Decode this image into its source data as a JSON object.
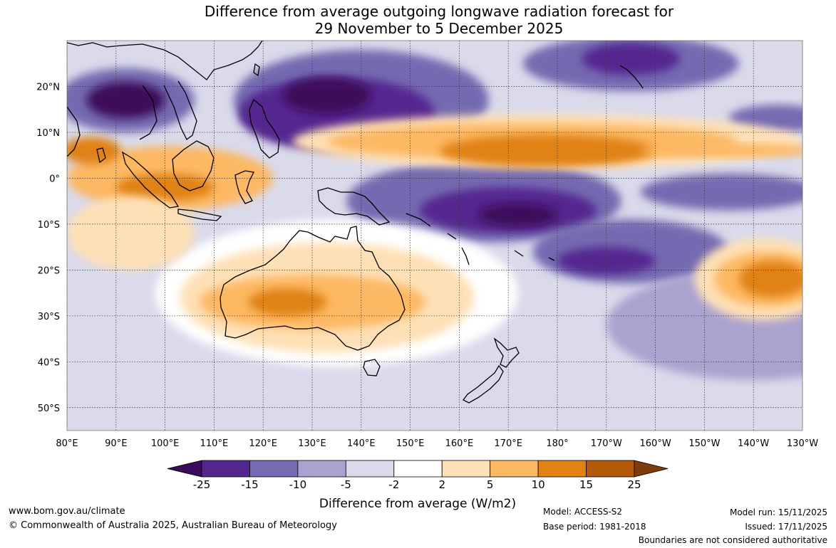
{
  "title": {
    "line1": "Difference from average outgoing longwave radiation forecast for",
    "line2": "29 November to 5 December 2025"
  },
  "map": {
    "lon_range": [
      80,
      230
    ],
    "lat_range": [
      -55,
      30
    ],
    "lon_ticks": [
      {
        "value": 80,
        "label": "80°E"
      },
      {
        "value": 90,
        "label": "90°E"
      },
      {
        "value": 100,
        "label": "100°E"
      },
      {
        "value": 110,
        "label": "110°E"
      },
      {
        "value": 120,
        "label": "120°E"
      },
      {
        "value": 130,
        "label": "130°E"
      },
      {
        "value": 140,
        "label": "140°E"
      },
      {
        "value": 150,
        "label": "150°E"
      },
      {
        "value": 160,
        "label": "160°E"
      },
      {
        "value": 170,
        "label": "170°E"
      },
      {
        "value": 180,
        "label": "180°"
      },
      {
        "value": 190,
        "label": "170°W"
      },
      {
        "value": 200,
        "label": "160°W"
      },
      {
        "value": 210,
        "label": "150°W"
      },
      {
        "value": 220,
        "label": "140°W"
      },
      {
        "value": 230,
        "label": "130°W"
      }
    ],
    "lat_ticks": [
      {
        "value": 20,
        "label": "20°N"
      },
      {
        "value": 10,
        "label": "10°N"
      },
      {
        "value": 0,
        "label": "0°"
      },
      {
        "value": -10,
        "label": "10°S"
      },
      {
        "value": -20,
        "label": "20°S"
      },
      {
        "value": -30,
        "label": "30°S"
      },
      {
        "value": -40,
        "label": "40°S"
      },
      {
        "value": -50,
        "label": "50°S"
      }
    ],
    "anomaly_blobs": [
      {
        "lon": 92,
        "lat": 17,
        "rx": 14,
        "ry": 7,
        "level": -10
      },
      {
        "lon": 92,
        "lat": 17,
        "rx": 8,
        "ry": 4,
        "level": -25
      },
      {
        "lon": 140,
        "lat": 17,
        "rx": 26,
        "ry": 11,
        "level": -10
      },
      {
        "lon": 135,
        "lat": 14,
        "rx": 20,
        "ry": 8,
        "level": -15
      },
      {
        "lon": 133,
        "lat": 18,
        "rx": 9,
        "ry": 4,
        "level": -25
      },
      {
        "lon": 165,
        "lat": -5,
        "rx": 28,
        "ry": 9,
        "level": -10
      },
      {
        "lon": 170,
        "lat": -7,
        "rx": 18,
        "ry": 5,
        "level": -15
      },
      {
        "lon": 172,
        "lat": -8,
        "rx": 8,
        "ry": 2.5,
        "level": -25
      },
      {
        "lon": 195,
        "lat": -16,
        "rx": 20,
        "ry": 7,
        "level": -10
      },
      {
        "lon": 190,
        "lat": -18,
        "rx": 10,
        "ry": 3,
        "level": -15
      },
      {
        "lon": 195,
        "lat": 25,
        "rx": 22,
        "ry": 6,
        "level": -10
      },
      {
        "lon": 195,
        "lat": 26,
        "rx": 10,
        "ry": 3.5,
        "level": -15
      },
      {
        "lon": 225,
        "lat": 13,
        "rx": 10,
        "ry": 3,
        "level": -10
      },
      {
        "lon": 215,
        "lat": -3,
        "rx": 18,
        "ry": 4,
        "level": -10
      },
      {
        "lon": 220,
        "lat": -32,
        "rx": 30,
        "ry": 12,
        "level": -5
      },
      {
        "lon": 140,
        "lat": -44,
        "rx": 40,
        "ry": 5,
        "level": -2
      },
      {
        "lon": 178,
        "lat": 8,
        "rx": 52,
        "ry": 6,
        "level": 5
      },
      {
        "lon": 175,
        "lat": 8,
        "rx": 42,
        "ry": 4,
        "level": 10
      },
      {
        "lon": 178,
        "lat": 6,
        "rx": 22,
        "ry": 3.5,
        "level": 15
      },
      {
        "lon": 215,
        "lat": 6,
        "rx": 18,
        "ry": 1.5,
        "level": 10
      },
      {
        "lon": 101,
        "lat": 0,
        "rx": 21,
        "ry": 7,
        "level": 10
      },
      {
        "lon": 100,
        "lat": -2,
        "rx": 10,
        "ry": 3,
        "level": 15
      },
      {
        "lon": 85,
        "lat": 6,
        "rx": 6,
        "ry": 3,
        "level": 15
      },
      {
        "lon": 135,
        "lat": -25,
        "rx": 37,
        "ry": 16,
        "level": 2
      },
      {
        "lon": 133,
        "lat": -26,
        "rx": 30,
        "ry": 12,
        "level": 5
      },
      {
        "lon": 130,
        "lat": -27,
        "rx": 23,
        "ry": 6,
        "level": 10
      },
      {
        "lon": 125,
        "lat": -27,
        "rx": 8,
        "ry": 3,
        "level": 15
      },
      {
        "lon": 222,
        "lat": -22,
        "rx": 14,
        "ry": 9,
        "level": 5
      },
      {
        "lon": 223,
        "lat": -22,
        "rx": 11,
        "ry": 6,
        "level": 10
      },
      {
        "lon": 224,
        "lat": -22,
        "rx": 7,
        "ry": 4,
        "level": 15
      },
      {
        "lon": 93,
        "lat": -12,
        "rx": 13,
        "ry": 8,
        "level": 5
      }
    ]
  },
  "colorbar": {
    "ticks": [
      "-25",
      "-15",
      "-10",
      "-5",
      "-2",
      "2",
      "5",
      "10",
      "15",
      "25"
    ],
    "colors": [
      "#3d0a5c",
      "#54278f",
      "#756bb1",
      "#aaa3cf",
      "#dadaeb",
      "#ffffff",
      "#fee0b6",
      "#fdb863",
      "#e08214",
      "#b35806",
      "#7f3b08"
    ],
    "title": "Difference from average (W/m2)"
  },
  "footer": {
    "website": "www.bom.gov.au/climate",
    "copyright": "© Commonwealth of Australia 2025, Australian Bureau of Meteorology",
    "model": "Model: ACCESS-S2",
    "base_period": "Base period: 1981-2018",
    "model_run": "Model run: 15/11/2025",
    "issued": "Issued: 17/11/2025",
    "disclaimer": "Boundaries are not considered authoritative"
  }
}
